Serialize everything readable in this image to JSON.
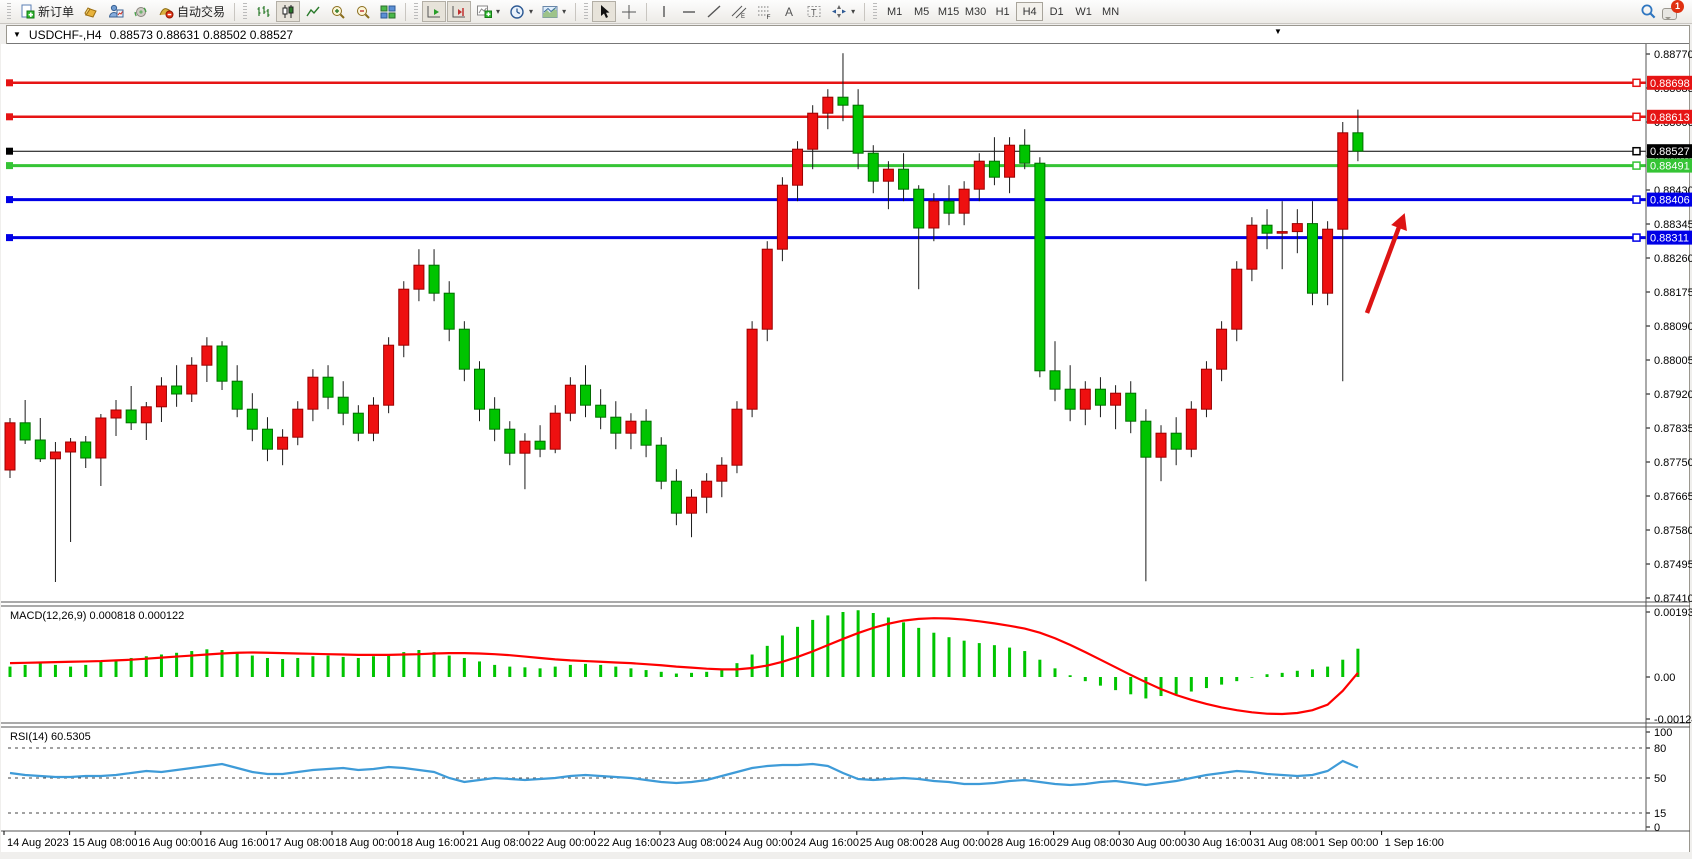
{
  "toolbar": {
    "new_order_label": "新订单",
    "auto_trading_label": "自动交易",
    "timeframes": [
      "M1",
      "M5",
      "M15",
      "M30",
      "H1",
      "H4",
      "D1",
      "W1",
      "MN"
    ],
    "active_timeframe": "H4",
    "chat_badge": "1"
  },
  "chart": {
    "symbol_period": "USDCHF-,H4",
    "ohlc": "0.88573 0.88631 0.88502 0.88527",
    "macd_label": "MACD(12,26,9) 0.000818 0.000122",
    "rsi_label": "RSI(14) 60.5305"
  },
  "chart_data": {
    "type": "candlestick",
    "symbol": "USDCHF",
    "period": "H4",
    "ylim": [
      0.8741,
      0.8877
    ],
    "price_axis_ticks": [
      "0.88770",
      "0.88685",
      "0.88600",
      "0.88515",
      "0.88430",
      "0.88345",
      "0.88260",
      "0.88175",
      "0.88090",
      "0.88005",
      "0.87920",
      "0.87835",
      "0.87750",
      "0.87665",
      "0.87580",
      "0.87495",
      "0.87410"
    ],
    "time_labels": [
      "14 Aug 2023",
      "15 Aug 08:00",
      "16 Aug 00:00",
      "16 Aug 16:00",
      "17 Aug 08:00",
      "18 Aug 00:00",
      "18 Aug 16:00",
      "21 Aug 08:00",
      "22 Aug 00:00",
      "22 Aug 16:00",
      "23 Aug 08:00",
      "24 Aug 00:00",
      "24 Aug 16:00",
      "25 Aug 08:00",
      "28 Aug 00:00",
      "28 Aug 16:00",
      "29 Aug 08:00",
      "30 Aug 00:00",
      "30 Aug 16:00",
      "31 Aug 08:00",
      "1 Sep 00:00",
      "1 Sep 16:00"
    ],
    "hlines": [
      {
        "price": 0.88698,
        "label": "0.88698",
        "color": "#e61414",
        "width": 2.5
      },
      {
        "price": 0.88613,
        "label": "0.88613",
        "color": "#e61414",
        "width": 2.5
      },
      {
        "price": 0.88527,
        "label": "0.88527",
        "color": "#000000",
        "width": 1
      },
      {
        "price": 0.88491,
        "label": "0.88491",
        "color": "#35c435",
        "width": 3
      },
      {
        "price": 0.88406,
        "label": "0.88406",
        "color": "#0000e6",
        "width": 3
      },
      {
        "price": 0.88311,
        "label": "0.88311",
        "color": "#0000e6",
        "width": 3
      }
    ],
    "current_price": 0.88527,
    "candles": [
      [
        0.8773,
        0.8786,
        0.8771,
        0.87848
      ],
      [
        0.87848,
        0.87905,
        0.87795,
        0.87805
      ],
      [
        0.87805,
        0.8786,
        0.8775,
        0.87758
      ],
      [
        0.87758,
        0.878,
        0.8745,
        0.87775
      ],
      [
        0.87775,
        0.8781,
        0.8755,
        0.878
      ],
      [
        0.878,
        0.87815,
        0.87735,
        0.8776
      ],
      [
        0.8776,
        0.8787,
        0.8769,
        0.8786
      ],
      [
        0.8786,
        0.87905,
        0.87815,
        0.8788
      ],
      [
        0.8788,
        0.8794,
        0.8783,
        0.87848
      ],
      [
        0.87848,
        0.879,
        0.87805,
        0.87888
      ],
      [
        0.87888,
        0.87962,
        0.8785,
        0.8794
      ],
      [
        0.8794,
        0.87992,
        0.87888,
        0.8792
      ],
      [
        0.8792,
        0.88012,
        0.879,
        0.87992
      ],
      [
        0.87992,
        0.88062,
        0.8795,
        0.8804
      ],
      [
        0.8804,
        0.88052,
        0.8793,
        0.87952
      ],
      [
        0.87952,
        0.87992,
        0.87862,
        0.87882
      ],
      [
        0.87882,
        0.87922,
        0.87802,
        0.87832
      ],
      [
        0.87832,
        0.87862,
        0.87752,
        0.87782
      ],
      [
        0.87782,
        0.87832,
        0.87742,
        0.87812
      ],
      [
        0.87812,
        0.87902,
        0.87792,
        0.87882
      ],
      [
        0.87882,
        0.87982,
        0.87852,
        0.87962
      ],
      [
        0.87962,
        0.87992,
        0.87882,
        0.87912
      ],
      [
        0.87912,
        0.87952,
        0.87842,
        0.87872
      ],
      [
        0.87872,
        0.87892,
        0.87802,
        0.87822
      ],
      [
        0.87822,
        0.87912,
        0.87802,
        0.87892
      ],
      [
        0.87892,
        0.88062,
        0.87872,
        0.88042
      ],
      [
        0.88042,
        0.88202,
        0.88012,
        0.88182
      ],
      [
        0.88182,
        0.88282,
        0.88152,
        0.88242
      ],
      [
        0.88242,
        0.88282,
        0.88152,
        0.88172
      ],
      [
        0.88172,
        0.88202,
        0.88052,
        0.88082
      ],
      [
        0.88082,
        0.88102,
        0.87952,
        0.87982
      ],
      [
        0.87982,
        0.88002,
        0.87852,
        0.87882
      ],
      [
        0.87882,
        0.87912,
        0.87802,
        0.87832
      ],
      [
        0.87832,
        0.87852,
        0.87742,
        0.87772
      ],
      [
        0.87772,
        0.87822,
        0.87682,
        0.87802
      ],
      [
        0.87802,
        0.87842,
        0.87762,
        0.87782
      ],
      [
        0.87782,
        0.87892,
        0.87772,
        0.87872
      ],
      [
        0.87872,
        0.87962,
        0.87852,
        0.87942
      ],
      [
        0.87942,
        0.87992,
        0.87862,
        0.87892
      ],
      [
        0.87892,
        0.87932,
        0.87832,
        0.87862
      ],
      [
        0.87862,
        0.87902,
        0.87782,
        0.87822
      ],
      [
        0.87822,
        0.87872,
        0.87782,
        0.87852
      ],
      [
        0.87852,
        0.87882,
        0.87762,
        0.87792
      ],
      [
        0.87792,
        0.87812,
        0.87682,
        0.87702
      ],
      [
        0.87702,
        0.87732,
        0.87592,
        0.87622
      ],
      [
        0.87622,
        0.87682,
        0.87562,
        0.87662
      ],
      [
        0.87662,
        0.87722,
        0.87622,
        0.87702
      ],
      [
        0.87702,
        0.87762,
        0.87662,
        0.87742
      ],
      [
        0.87742,
        0.87902,
        0.87722,
        0.87882
      ],
      [
        0.87882,
        0.88102,
        0.87862,
        0.88082
      ],
      [
        0.88082,
        0.88302,
        0.88052,
        0.88282
      ],
      [
        0.88282,
        0.88462,
        0.88252,
        0.88442
      ],
      [
        0.88442,
        0.88552,
        0.88402,
        0.88532
      ],
      [
        0.88532,
        0.88642,
        0.88482,
        0.88622
      ],
      [
        0.88622,
        0.88682,
        0.88582,
        0.88662
      ],
      [
        0.88662,
        0.88772,
        0.88602,
        0.88642
      ],
      [
        0.88642,
        0.88682,
        0.88482,
        0.88522
      ],
      [
        0.88522,
        0.88542,
        0.88422,
        0.88452
      ],
      [
        0.88452,
        0.88502,
        0.88382,
        0.88482
      ],
      [
        0.88482,
        0.88522,
        0.88402,
        0.88432
      ],
      [
        0.88432,
        0.88442,
        0.88182,
        0.88335
      ],
      [
        0.88335,
        0.88422,
        0.88302,
        0.88402
      ],
      [
        0.88402,
        0.88442,
        0.88342,
        0.88372
      ],
      [
        0.88372,
        0.88452,
        0.88342,
        0.88432
      ],
      [
        0.88432,
        0.88522,
        0.88402,
        0.88502
      ],
      [
        0.88502,
        0.88562,
        0.88442,
        0.88462
      ],
      [
        0.88462,
        0.88562,
        0.88422,
        0.88542
      ],
      [
        0.88542,
        0.88582,
        0.88482,
        0.88497
      ],
      [
        0.88497,
        0.88512,
        0.87962,
        0.87978
      ],
      [
        0.87978,
        0.88052,
        0.87902,
        0.87932
      ],
      [
        0.87932,
        0.87992,
        0.87852,
        0.87882
      ],
      [
        0.87882,
        0.87952,
        0.87842,
        0.87932
      ],
      [
        0.87932,
        0.87962,
        0.87862,
        0.87892
      ],
      [
        0.87892,
        0.87942,
        0.87832,
        0.87922
      ],
      [
        0.87922,
        0.87952,
        0.87822,
        0.87852
      ],
      [
        0.87852,
        0.87882,
        0.87452,
        0.87762
      ],
      [
        0.87762,
        0.87842,
        0.87702,
        0.87822
      ],
      [
        0.87822,
        0.87862,
        0.87742,
        0.87782
      ],
      [
        0.87782,
        0.87902,
        0.87762,
        0.87882
      ],
      [
        0.87882,
        0.88002,
        0.87862,
        0.87982
      ],
      [
        0.87982,
        0.88102,
        0.87952,
        0.88082
      ],
      [
        0.88082,
        0.88252,
        0.88052,
        0.88232
      ],
      [
        0.88232,
        0.88362,
        0.88202,
        0.88342
      ],
      [
        0.88342,
        0.88382,
        0.88282,
        0.88322
      ],
      [
        0.88322,
        0.88402,
        0.88232,
        0.88326
      ],
      [
        0.88326,
        0.88382,
        0.88272,
        0.88346
      ],
      [
        0.88346,
        0.88402,
        0.88142,
        0.88172
      ],
      [
        0.88172,
        0.88352,
        0.88142,
        0.88332
      ],
      [
        0.88332,
        0.886,
        0.87952,
        0.88573
      ],
      [
        0.88573,
        0.88631,
        0.88502,
        0.88527
      ]
    ],
    "macd": {
      "params": "12,26,9",
      "axis": [
        "0.001934",
        "0.00",
        "-0.001249"
      ],
      "hist": [
        0.0003,
        0.00035,
        0.0004,
        0.00035,
        0.0003,
        0.00035,
        0.00045,
        0.0005,
        0.00055,
        0.0006,
        0.00065,
        0.0007,
        0.00075,
        0.0008,
        0.00078,
        0.0007,
        0.00062,
        0.00055,
        0.00052,
        0.00055,
        0.0006,
        0.00062,
        0.00058,
        0.00055,
        0.0006,
        0.00065,
        0.00072,
        0.00078,
        0.00072,
        0.00062,
        0.00055,
        0.00045,
        0.00035,
        0.0003,
        0.00028,
        0.00025,
        0.0003,
        0.00035,
        0.00038,
        0.00035,
        0.0003,
        0.00025,
        0.0002,
        0.00015,
        0.0001,
        0.00012,
        0.00015,
        0.0002,
        0.0004,
        0.00065,
        0.0009,
        0.0012,
        0.00145,
        0.00165,
        0.00178,
        0.00188,
        0.00193,
        0.00185,
        0.00172,
        0.00158,
        0.00142,
        0.00128,
        0.00115,
        0.00105,
        0.00098,
        0.00092,
        0.00085,
        0.00075,
        0.0005,
        0.00025,
        5e-05,
        -0.00012,
        -0.00025,
        -0.00038,
        -0.0005,
        -0.00062,
        -0.00055,
        -0.0005,
        -0.00042,
        -0.00032,
        -0.00022,
        -0.00012,
        -2e-05,
        8e-05,
        0.00012,
        0.00018,
        0.00022,
        0.0003,
        0.0005,
        0.000818
      ],
      "signal": [
        0.0004,
        0.00041,
        0.00042,
        0.00043,
        0.00044,
        0.00045,
        0.00046,
        0.00048,
        0.0005,
        0.00053,
        0.00056,
        0.00059,
        0.00062,
        0.00065,
        0.00068,
        0.0007,
        0.00071,
        0.0007,
        0.00069,
        0.00068,
        0.00067,
        0.00066,
        0.00065,
        0.00064,
        0.00064,
        0.00064,
        0.00065,
        0.00066,
        0.00068,
        0.00069,
        0.00069,
        0.00068,
        0.00066,
        0.00063,
        0.00059,
        0.00055,
        0.00051,
        0.00048,
        0.00046,
        0.00044,
        0.00042,
        0.0004,
        0.00037,
        0.00034,
        0.0003,
        0.00027,
        0.00024,
        0.00022,
        0.00022,
        0.00026,
        0.00033,
        0.00044,
        0.00058,
        0.00074,
        0.00092,
        0.0011,
        0.00127,
        0.00142,
        0.00154,
        0.00163,
        0.00168,
        0.0017,
        0.00169,
        0.00166,
        0.00161,
        0.00155,
        0.00148,
        0.0014,
        0.00128,
        0.00112,
        0.00093,
        0.00072,
        0.0005,
        0.00028,
        6e-05,
        -0.00015,
        -0.00035,
        -0.00052,
        -0.00066,
        -0.00078,
        -0.00088,
        -0.00096,
        -0.00102,
        -0.00106,
        -0.00107,
        -0.00104,
        -0.00096,
        -0.0008,
        -0.0004,
        0.000122
      ]
    },
    "rsi": {
      "period": 14,
      "axis": [
        "100",
        "80",
        "50",
        "15",
        "0"
      ],
      "levels": [
        80,
        50,
        15
      ],
      "values": [
        55,
        53,
        52,
        51,
        51,
        52,
        52,
        53,
        55,
        57,
        56,
        58,
        60,
        62,
        64,
        60,
        56,
        54,
        54,
        56,
        58,
        59,
        60,
        58,
        59,
        61,
        60,
        58,
        56,
        50,
        46,
        48,
        50,
        49,
        48,
        49,
        50,
        52,
        53,
        52,
        51,
        50,
        48,
        46,
        45,
        46,
        48,
        52,
        56,
        60,
        62,
        63,
        63,
        64,
        62,
        55,
        49,
        48,
        49,
        50,
        49,
        47,
        46,
        44,
        44,
        45,
        47,
        48,
        46,
        44,
        43,
        44,
        46,
        47,
        45,
        43,
        45,
        47,
        50,
        53,
        55,
        57,
        56,
        54,
        53,
        52,
        53,
        57,
        67,
        60.5
      ]
    },
    "arrow_annotation": {
      "from": [
        1367,
        313
      ],
      "to": [
        1399,
        227
      ],
      "color": "#dd1414"
    }
  },
  "colors": {
    "candle_up": "#ee1010",
    "candle_down": "#00c400",
    "wick": "#1a1a1a",
    "macd_hist": "#00c400",
    "macd_signal": "#ff0000",
    "rsi_line": "#3e9bd8",
    "badge_red": "#e61414",
    "badge_green": "#35c435",
    "badge_blue": "#0000e6",
    "badge_black": "#000000"
  }
}
